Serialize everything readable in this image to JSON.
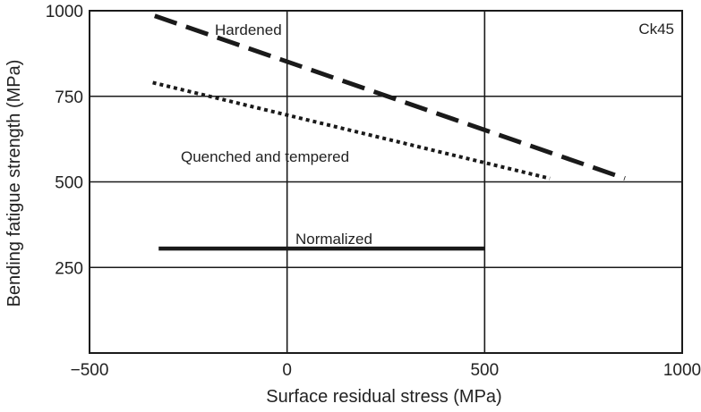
{
  "chart_data": {
    "type": "line",
    "title": "",
    "xlabel": "Surface residual stress (MPa)",
    "ylabel": "Bending fatigue strength (MPa)",
    "xlim": [
      -500,
      1000
    ],
    "ylim": [
      0,
      1000
    ],
    "x_ticks": [
      -500,
      0,
      500,
      1000
    ],
    "x_tick_labels": [
      "−500",
      "0",
      "500",
      "1000"
    ],
    "y_ticks": [
      250,
      500,
      750,
      1000
    ],
    "y_tick_labels": [
      "250",
      "500",
      "750",
      "1000"
    ],
    "grid": true,
    "annotation": "Ck45",
    "series": [
      {
        "name": "Hardened",
        "style": "dashed",
        "color": "#1a1a1a",
        "x": [
          -335,
          855
        ],
        "y": [
          985,
          510
        ]
      },
      {
        "name": "Quenched and tempered",
        "style": "dotted",
        "color": "#1a1a1a",
        "x": [
          -340,
          665
        ],
        "y": [
          790,
          510
        ]
      },
      {
        "name": "Normalized",
        "style": "solid",
        "color": "#1a1a1a",
        "x": [
          -325,
          500
        ],
        "y": [
          305,
          305
        ]
      }
    ]
  }
}
